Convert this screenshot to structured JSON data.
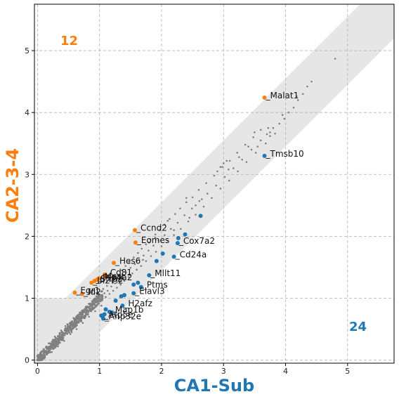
{
  "chart_data": {
    "type": "scatter",
    "xlabel": "CA1-Sub",
    "ylabel": "CA2-3-4",
    "xlim": [
      -0.05,
      5.75
    ],
    "ylim": [
      -0.05,
      5.75
    ],
    "xticks": [
      0,
      1,
      2,
      3,
      4,
      5
    ],
    "yticks": [
      0,
      1,
      2,
      3,
      4,
      5
    ],
    "grid": true,
    "colors": {
      "up": "#ff7f0e",
      "down": "#1f77b4",
      "background": "#808080",
      "band": "#e6e6e6"
    },
    "counts": {
      "up": "12",
      "down": "24"
    },
    "up_genes": [
      {
        "label": "Malat1",
        "x": 3.66,
        "y": 4.24
      },
      {
        "label": "Ccnd2",
        "x": 1.57,
        "y": 2.1
      },
      {
        "label": "Eomes",
        "x": 1.58,
        "y": 1.9
      },
      {
        "label": "Hes6",
        "x": 1.23,
        "y": 1.57
      },
      {
        "label": "Cd81",
        "x": 1.08,
        "y": 1.38
      },
      {
        "label": "Mest",
        "x": 0.99,
        "y": 1.32
      },
      {
        "label": "Ptp4a2",
        "x": 0.96,
        "y": 1.3
      },
      {
        "label": "Sfrp2",
        "x": 0.92,
        "y": 1.28
      },
      {
        "label": "Ifi27l2",
        "x": 0.87,
        "y": 1.25
      },
      {
        "label": "Egr1",
        "x": 0.6,
        "y": 1.09
      },
      {
        "label": "Id2",
        "x": 0.72,
        "y": 1.07
      },
      {
        "label": "",
        "x": 1.12,
        "y": 1.35
      }
    ],
    "down_genes": [
      {
        "label": "Tmsb10",
        "x": 3.66,
        "y": 3.3
      },
      {
        "label": "Cox7a2",
        "x": 2.26,
        "y": 1.89
      },
      {
        "label": "Cd24a",
        "x": 2.2,
        "y": 1.67
      },
      {
        "label": "Mllt11",
        "x": 1.8,
        "y": 1.37
      },
      {
        "label": "Ptms",
        "x": 1.67,
        "y": 1.18
      },
      {
        "label": "Elavl3",
        "x": 1.55,
        "y": 1.08
      },
      {
        "label": "H2afz",
        "x": 1.37,
        "y": 0.88
      },
      {
        "label": "Map1b",
        "x": 1.16,
        "y": 0.78
      },
      {
        "label": "Atp5e",
        "x": 1.05,
        "y": 0.7
      },
      {
        "label": "Anp32e",
        "x": 1.06,
        "y": 0.67
      },
      {
        "label": "",
        "x": 2.63,
        "y": 2.33
      },
      {
        "label": "",
        "x": 2.38,
        "y": 2.03
      },
      {
        "label": "",
        "x": 2.27,
        "y": 1.97
      },
      {
        "label": "",
        "x": 2.02,
        "y": 1.72
      },
      {
        "label": "",
        "x": 1.92,
        "y": 1.6
      },
      {
        "label": "",
        "x": 1.62,
        "y": 1.25
      },
      {
        "label": "",
        "x": 1.55,
        "y": 1.22
      },
      {
        "label": "",
        "x": 1.26,
        "y": 0.96
      },
      {
        "label": "",
        "x": 1.35,
        "y": 1.03
      },
      {
        "label": "",
        "x": 1.4,
        "y": 1.05
      },
      {
        "label": "",
        "x": 1.1,
        "y": 0.82
      },
      {
        "label": "",
        "x": 1.2,
        "y": 0.77
      },
      {
        "label": "",
        "x": 1.08,
        "y": 0.74
      },
      {
        "label": "",
        "x": 1.03,
        "y": 0.72
      }
    ],
    "background_points": [
      [
        0.02,
        0.02
      ],
      [
        0.03,
        0.05
      ],
      [
        0.05,
        0.03
      ],
      [
        0.06,
        0.08
      ],
      [
        0.08,
        0.06
      ],
      [
        0.1,
        0.12
      ],
      [
        0.11,
        0.09
      ],
      [
        0.13,
        0.15
      ],
      [
        0.14,
        0.11
      ],
      [
        0.16,
        0.18
      ],
      [
        0.17,
        0.14
      ],
      [
        0.19,
        0.22
      ],
      [
        0.2,
        0.18
      ],
      [
        0.22,
        0.25
      ],
      [
        0.24,
        0.2
      ],
      [
        0.25,
        0.28
      ],
      [
        0.27,
        0.24
      ],
      [
        0.29,
        0.31
      ],
      [
        0.3,
        0.27
      ],
      [
        0.32,
        0.35
      ],
      [
        0.34,
        0.3
      ],
      [
        0.35,
        0.38
      ],
      [
        0.37,
        0.34
      ],
      [
        0.39,
        0.41
      ],
      [
        0.4,
        0.37
      ],
      [
        0.42,
        0.44
      ],
      [
        0.44,
        0.4
      ],
      [
        0.45,
        0.47
      ],
      [
        0.47,
        0.43
      ],
      [
        0.49,
        0.5
      ],
      [
        0.5,
        0.47
      ],
      [
        0.52,
        0.54
      ],
      [
        0.54,
        0.5
      ],
      [
        0.55,
        0.57
      ],
      [
        0.57,
        0.53
      ],
      [
        0.59,
        0.6
      ],
      [
        0.6,
        0.56
      ],
      [
        0.62,
        0.64
      ],
      [
        0.64,
        0.6
      ],
      [
        0.65,
        0.67
      ],
      [
        0.67,
        0.63
      ],
      [
        0.69,
        0.7
      ],
      [
        0.7,
        0.66
      ],
      [
        0.72,
        0.74
      ],
      [
        0.74,
        0.7
      ],
      [
        0.76,
        0.77
      ],
      [
        0.78,
        0.73
      ],
      [
        0.8,
        0.81
      ],
      [
        0.82,
        0.77
      ],
      [
        0.84,
        0.85
      ],
      [
        0.86,
        0.8
      ],
      [
        0.88,
        0.88
      ],
      [
        0.9,
        0.84
      ],
      [
        0.92,
        0.92
      ],
      [
        0.94,
        0.88
      ],
      [
        0.96,
        0.96
      ],
      [
        0.98,
        0.92
      ],
      [
        1.0,
        0.99
      ],
      [
        1.02,
        0.95
      ],
      [
        1.05,
        1.03
      ],
      [
        0.07,
        0.14
      ],
      [
        0.12,
        0.05
      ],
      [
        0.18,
        0.27
      ],
      [
        0.23,
        0.13
      ],
      [
        0.28,
        0.38
      ],
      [
        0.33,
        0.22
      ],
      [
        0.38,
        0.48
      ],
      [
        0.43,
        0.31
      ],
      [
        0.48,
        0.58
      ],
      [
        0.53,
        0.42
      ],
      [
        0.58,
        0.68
      ],
      [
        0.63,
        0.5
      ],
      [
        0.68,
        0.77
      ],
      [
        0.73,
        0.6
      ],
      [
        0.78,
        0.86
      ],
      [
        0.83,
        0.7
      ],
      [
        0.88,
        0.95
      ],
      [
        0.93,
        0.79
      ],
      [
        0.98,
        1.04
      ],
      [
        1.03,
        0.88
      ],
      [
        0.15,
        0.09
      ],
      [
        0.21,
        0.2
      ],
      [
        0.26,
        0.19
      ],
      [
        0.31,
        0.3
      ],
      [
        0.36,
        0.33
      ],
      [
        0.41,
        0.39
      ],
      [
        0.46,
        0.45
      ],
      [
        0.51,
        0.52
      ],
      [
        0.56,
        0.51
      ],
      [
        0.61,
        0.62
      ],
      [
        0.66,
        0.61
      ],
      [
        0.71,
        0.71
      ],
      [
        0.76,
        0.72
      ],
      [
        0.81,
        0.79
      ],
      [
        0.85,
        0.83
      ],
      [
        0.9,
        0.9
      ],
      [
        0.95,
        0.93
      ],
      [
        0.99,
        1.01
      ],
      [
        0.55,
        0.45
      ],
      [
        0.45,
        0.55
      ],
      [
        1.08,
        1.08
      ],
      [
        1.1,
        1.02
      ],
      [
        1.13,
        1.12
      ],
      [
        1.16,
        1.07
      ],
      [
        1.19,
        1.19
      ],
      [
        1.22,
        1.12
      ],
      [
        1.25,
        1.24
      ],
      [
        1.28,
        1.17
      ],
      [
        1.31,
        1.3
      ],
      [
        1.34,
        1.22
      ],
      [
        1.37,
        1.36
      ],
      [
        1.4,
        1.28
      ],
      [
        1.43,
        1.42
      ],
      [
        1.47,
        1.34
      ],
      [
        1.5,
        1.49
      ],
      [
        1.53,
        1.4
      ],
      [
        1.57,
        1.55
      ],
      [
        1.6,
        1.46
      ],
      [
        1.64,
        1.62
      ],
      [
        1.67,
        1.52
      ],
      [
        1.71,
        1.69
      ],
      [
        1.75,
        1.6
      ],
      [
        1.79,
        1.77
      ],
      [
        1.83,
        1.68
      ],
      [
        1.87,
        1.85
      ],
      [
        1.91,
        1.75
      ],
      [
        1.95,
        1.93
      ],
      [
        2.0,
        1.84
      ],
      [
        2.05,
        2.02
      ],
      [
        2.1,
        1.93
      ],
      [
        2.15,
        2.12
      ],
      [
        2.2,
        2.02
      ],
      [
        2.26,
        2.22
      ],
      [
        2.31,
        2.12
      ],
      [
        2.37,
        2.34
      ],
      [
        2.43,
        2.24
      ],
      [
        2.49,
        2.45
      ],
      [
        2.55,
        2.35
      ],
      [
        2.61,
        2.57
      ],
      [
        2.68,
        2.48
      ],
      [
        2.74,
        2.69
      ],
      [
        2.81,
        2.62
      ],
      [
        2.88,
        2.82
      ],
      [
        2.95,
        2.77
      ],
      [
        3.02,
        2.96
      ],
      [
        3.09,
        2.9
      ],
      [
        3.16,
        3.1
      ],
      [
        3.23,
        3.05
      ],
      [
        3.3,
        3.24
      ],
      [
        3.37,
        3.2
      ],
      [
        3.45,
        3.4
      ],
      [
        3.52,
        3.35
      ],
      [
        3.6,
        3.55
      ],
      [
        3.68,
        3.5
      ],
      [
        3.75,
        3.68
      ],
      [
        3.83,
        3.66
      ],
      [
        3.9,
        3.82
      ],
      [
        3.98,
        3.9
      ],
      [
        4.05,
        4.0
      ],
      [
        4.13,
        4.08
      ],
      [
        4.2,
        4.2
      ],
      [
        4.28,
        4.3
      ],
      [
        4.35,
        4.42
      ],
      [
        4.42,
        4.5
      ],
      [
        4.8,
        4.87
      ],
      [
        4.18,
        4.26
      ],
      [
        3.95,
        3.96
      ],
      [
        3.72,
        3.75
      ],
      [
        3.55,
        3.45
      ],
      [
        3.4,
        3.45
      ],
      [
        1.06,
        1.15
      ],
      [
        1.12,
        1.2
      ],
      [
        1.18,
        1.28
      ],
      [
        1.24,
        1.32
      ],
      [
        1.3,
        1.38
      ],
      [
        1.36,
        1.45
      ],
      [
        1.42,
        1.52
      ],
      [
        1.48,
        1.58
      ],
      [
        1.55,
        1.66
      ],
      [
        1.62,
        1.73
      ],
      [
        1.68,
        1.8
      ],
      [
        1.75,
        1.87
      ],
      [
        1.82,
        1.95
      ],
      [
        1.9,
        2.03
      ],
      [
        1.97,
        2.1
      ],
      [
        2.05,
        2.19
      ],
      [
        2.13,
        2.28
      ],
      [
        2.22,
        2.36
      ],
      [
        2.3,
        2.45
      ],
      [
        2.4,
        2.55
      ],
      [
        2.5,
        2.63
      ],
      [
        2.6,
        2.75
      ],
      [
        2.72,
        2.86
      ],
      [
        2.85,
        2.98
      ],
      [
        2.98,
        3.12
      ],
      [
        3.1,
        3.22
      ],
      [
        3.22,
        3.35
      ],
      [
        3.35,
        3.48
      ],
      [
        3.48,
        3.6
      ],
      [
        3.6,
        3.72
      ],
      [
        2.9,
        3.05
      ],
      [
        2.95,
        3.12
      ],
      [
        3.0,
        3.18
      ],
      [
        3.05,
        3.22
      ],
      [
        3.08,
        3.08
      ],
      [
        3.25,
        3.28
      ],
      [
        3.5,
        3.68
      ],
      [
        3.7,
        3.65
      ],
      [
        3.75,
        3.62
      ],
      [
        3.8,
        3.75
      ],
      [
        2.2,
        2.1
      ],
      [
        2.45,
        2.3
      ],
      [
        2.55,
        2.5
      ],
      [
        2.65,
        2.6
      ],
      [
        2.4,
        2.62
      ],
      [
        2.1,
        2.25
      ],
      [
        1.9,
        1.98
      ],
      [
        1.8,
        1.9
      ],
      [
        1.7,
        1.62
      ],
      [
        1.6,
        1.6
      ]
    ]
  }
}
